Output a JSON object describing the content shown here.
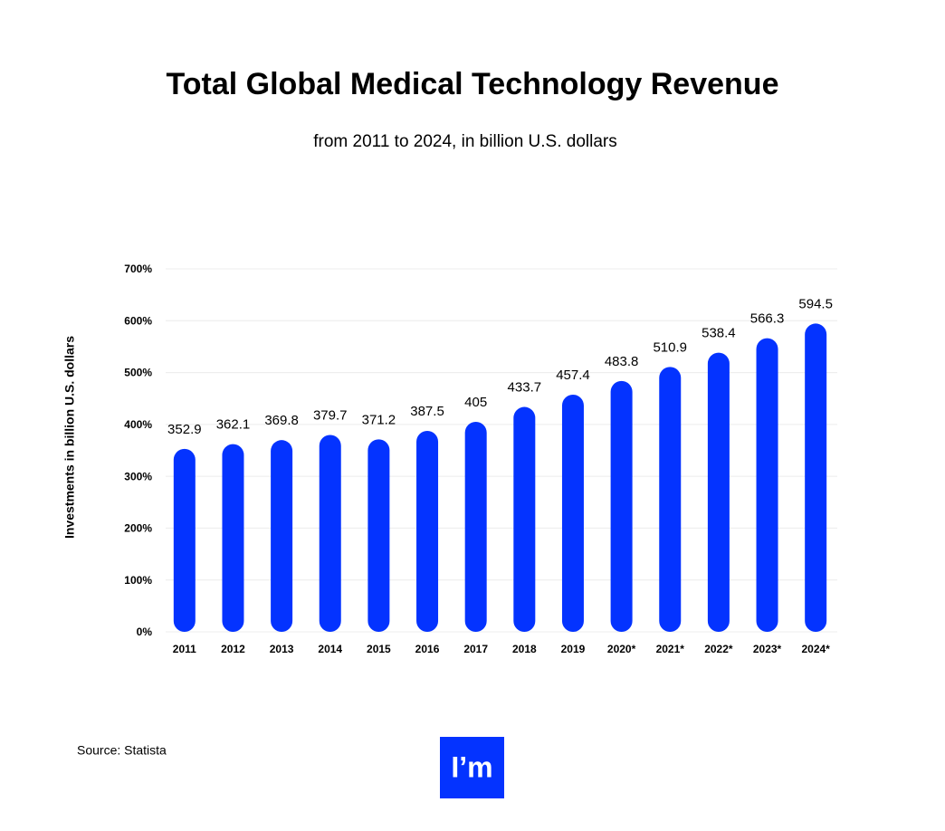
{
  "chart_data": {
    "type": "bar",
    "title": "Total Global Medical Technology Revenue",
    "subtitle": "from 2011 to 2024, in billion U.S. dollars",
    "y_label": "Investments in billion U.S. dollars",
    "categories": [
      "2011",
      "2012",
      "2013",
      "2014",
      "2015",
      "2016",
      "2017",
      "2018",
      "2019",
      "2020*",
      "2021*",
      "2022*",
      "2023*",
      "2024*"
    ],
    "values": [
      352.9,
      362.1,
      369.8,
      379.7,
      371.2,
      387.5,
      405,
      433.7,
      457.4,
      483.8,
      510.9,
      538.4,
      566.3,
      594.5
    ],
    "color": "#0433ff",
    "ylim": [
      0,
      700
    ],
    "yticks": [
      {
        "value": 0,
        "label": "0%"
      },
      {
        "value": 100,
        "label": "100%"
      },
      {
        "value": 200,
        "label": "200%"
      },
      {
        "value": 300,
        "label": "300%"
      },
      {
        "value": 400,
        "label": "400%"
      },
      {
        "value": 500,
        "label": "500%"
      },
      {
        "value": 600,
        "label": "600%"
      },
      {
        "value": 700,
        "label": "700%"
      }
    ],
    "grid": true,
    "source": "Source: Statista"
  },
  "logo": "I’m"
}
